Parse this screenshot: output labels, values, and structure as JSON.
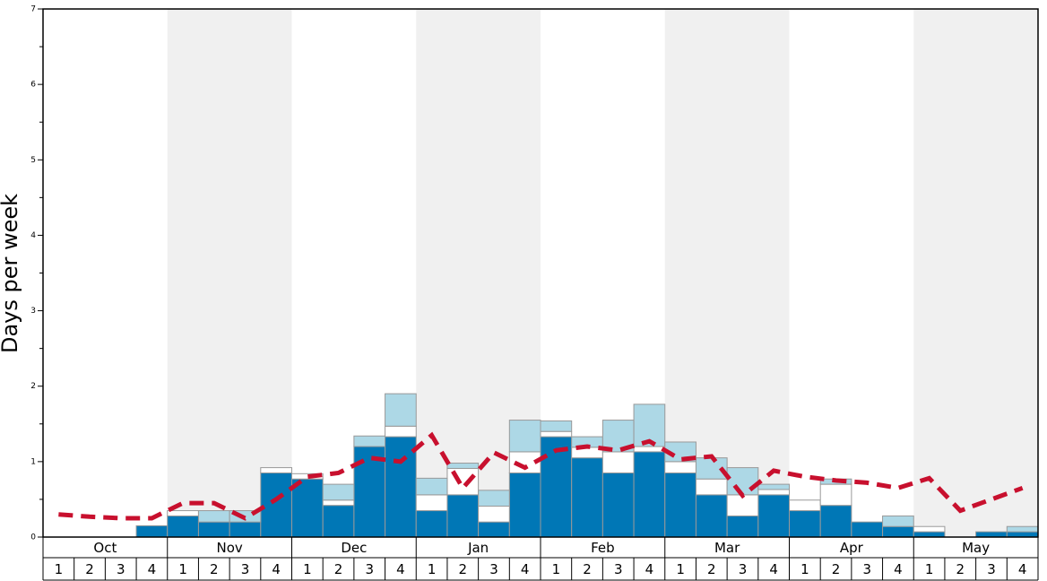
{
  "chart_data": {
    "type": "bar",
    "stacked": true,
    "ylabel": "Days per week",
    "ylim": [
      0,
      7
    ],
    "yticks": [
      0,
      1,
      2,
      3,
      4,
      5,
      6,
      7
    ],
    "yminorticks": [
      0.5,
      1.5,
      2.5,
      3.5,
      4.5,
      5.5,
      6.5
    ],
    "groups": [
      "Oct",
      "Nov",
      "Dec",
      "Jan",
      "Feb",
      "Mar",
      "Apr",
      "May"
    ],
    "categories": [
      "1",
      "2",
      "3",
      "4",
      "1",
      "2",
      "3",
      "4",
      "1",
      "2",
      "3",
      "4",
      "1",
      "2",
      "3",
      "4",
      "1",
      "2",
      "3",
      "4",
      "1",
      "2",
      "3",
      "4",
      "1",
      "2",
      "3",
      "4",
      "1",
      "2",
      "3",
      "4"
    ],
    "series": [
      {
        "color": "#0077b6",
        "values": [
          0,
          0,
          0,
          0.15,
          0.28,
          0.2,
          0.2,
          0.85,
          0.77,
          0.42,
          1.2,
          1.33,
          0.35,
          0.56,
          0.2,
          0.85,
          1.33,
          1.05,
          0.85,
          1.13,
          0.85,
          0.56,
          0.28,
          0.56,
          0.35,
          0.42,
          0.2,
          0.14,
          0.07,
          0,
          0.07,
          0.07
        ]
      },
      {
        "color": "#ffffff",
        "values": [
          0,
          0,
          0,
          0,
          0.07,
          0,
          0,
          0.07,
          0.07,
          0.07,
          0,
          0.14,
          0.21,
          0.35,
          0.21,
          0.28,
          0.07,
          0.14,
          0.28,
          0.07,
          0.15,
          0.21,
          0.28,
          0.07,
          0.14,
          0.28,
          0,
          0,
          0.07,
          0,
          0,
          0
        ]
      },
      {
        "color": "#add8e6",
        "values": [
          0,
          0,
          0,
          0,
          0,
          0.15,
          0.15,
          0,
          0,
          0.21,
          0.14,
          0.43,
          0.22,
          0.07,
          0.21,
          0.42,
          0.14,
          0.14,
          0.42,
          0.56,
          0.26,
          0.28,
          0.36,
          0.07,
          0,
          0.07,
          0,
          0.14,
          0,
          0,
          0,
          0.07
        ]
      },
      {
        "type": "line",
        "color": "#c8102e",
        "dashed": true,
        "values": [
          0.3,
          0.27,
          0.25,
          0.25,
          0.45,
          0.45,
          0.25,
          0.5,
          0.8,
          0.85,
          1.05,
          1.0,
          1.35,
          0.65,
          1.12,
          0.92,
          1.15,
          1.2,
          1.15,
          1.27,
          1.03,
          1.07,
          0.55,
          0.88,
          0.8,
          0.75,
          0.72,
          0.65,
          0.78,
          0.35,
          0.5,
          0.65
        ]
      }
    ]
  }
}
